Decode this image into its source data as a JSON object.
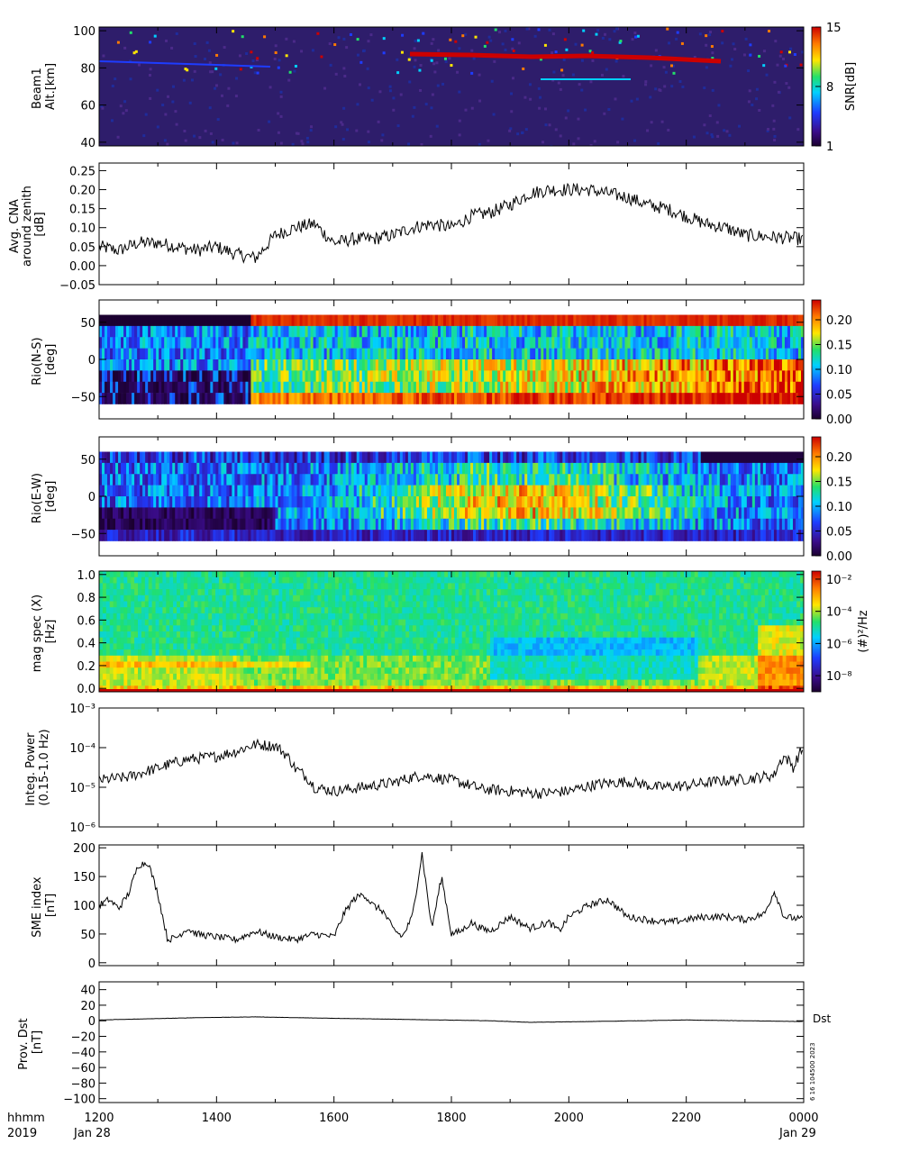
{
  "chart_data": [
    {
      "type": "heatmap",
      "ylabel": [
        "Beam1",
        "Alt.[km]"
      ],
      "y_ticks": [
        "40",
        "60",
        "80",
        "100"
      ],
      "ylim": [
        38,
        102
      ],
      "colorbar": {
        "label": "SNR[dB]",
        "ticks": [
          "1",
          "8",
          "15"
        ],
        "range": [
          1,
          15
        ]
      }
    },
    {
      "type": "line",
      "ylabel": [
        "Avg. CNA",
        "around zenith",
        "[dB]"
      ],
      "y_ticks": [
        "−0.05",
        "0.00",
        "0.05",
        "0.10",
        "0.15",
        "0.20",
        "0.25"
      ],
      "ylim": [
        -0.05,
        0.27
      ],
      "x": [
        0,
        20,
        40,
        60,
        80,
        100,
        120,
        140,
        160,
        180,
        200,
        220,
        240,
        260,
        280,
        300,
        320,
        340,
        360,
        380,
        400,
        420,
        440,
        460,
        480,
        500,
        520,
        540,
        560,
        580,
        600,
        620,
        640,
        660,
        720
      ],
      "values": [
        0.05,
        0.04,
        0.06,
        0.06,
        0.05,
        0.04,
        0.05,
        0.03,
        0.02,
        0.08,
        0.1,
        0.11,
        0.06,
        0.07,
        0.07,
        0.08,
        0.1,
        0.11,
        0.1,
        0.13,
        0.14,
        0.16,
        0.19,
        0.2,
        0.2,
        0.2,
        0.19,
        0.18,
        0.16,
        0.15,
        0.13,
        0.11,
        0.1,
        0.08,
        0.07
      ]
    },
    {
      "type": "heatmap",
      "ylabel": [
        "Rio(N-S)",
        "[deg]"
      ],
      "y_ticks": [
        "−50",
        "0",
        "50"
      ],
      "ylim": [
        -80,
        80
      ],
      "colorbar": {
        "ticks": [
          "0.00",
          "0.05",
          "0.10",
          "0.15",
          "0.20"
        ],
        "range": [
          0,
          0.24
        ]
      }
    },
    {
      "type": "heatmap",
      "ylabel": [
        "Rio(E-W)",
        "[deg]"
      ],
      "y_ticks": [
        "−50",
        "0",
        "50"
      ],
      "ylim": [
        -80,
        80
      ],
      "colorbar": {
        "ticks": [
          "0.00",
          "0.05",
          "0.10",
          "0.15",
          "0.20"
        ],
        "range": [
          0,
          0.24
        ]
      }
    },
    {
      "type": "heatmap",
      "ylabel": [
        "mag spec (X)",
        "[Hz]"
      ],
      "y_ticks": [
        "0.0",
        "0.2",
        "0.4",
        "0.6",
        "0.8",
        "1.0"
      ],
      "ylim": [
        -0.03,
        1.03
      ],
      "colorbar": {
        "label": "(#)²/Hz",
        "ticks": [
          "10⁻⁸",
          "10⁻⁶",
          "10⁻⁴",
          "10⁻²"
        ],
        "range": [
          -9,
          -1.5
        ]
      }
    },
    {
      "type": "line",
      "ylabel": [
        "Integ. Power",
        "(0.15-1.0 Hz)"
      ],
      "y_ticks": [
        "10⁻⁶",
        "10⁻⁵",
        "10⁻⁴",
        "10⁻³"
      ],
      "yscale": "log",
      "ylim": [
        -6,
        -3
      ],
      "x": [
        0,
        30,
        60,
        90,
        120,
        140,
        160,
        180,
        200,
        220,
        240,
        270,
        300,
        330,
        360,
        390,
        420,
        450,
        480,
        510,
        540,
        570,
        600,
        630,
        660,
        690,
        700,
        710,
        720
      ],
      "values": [
        1.5e-05,
        1.8e-05,
        3e-05,
        5e-05,
        6e-05,
        8e-05,
        0.00012,
        0.00011,
        3e-05,
        1e-05,
        8e-06,
        1e-05,
        1.3e-05,
        2e-05,
        1.5e-05,
        9e-06,
        8e-06,
        7e-06,
        8e-06,
        1.2e-05,
        1.4e-05,
        1e-05,
        1.1e-05,
        1.4e-05,
        1.6e-05,
        2e-05,
        6e-05,
        3e-05,
        0.0001
      ]
    },
    {
      "type": "line",
      "ylabel": [
        "SME index",
        "[nT]"
      ],
      "y_ticks": [
        "0",
        "50",
        "100",
        "150",
        "200"
      ],
      "ylim": [
        -5,
        205
      ],
      "x": [
        0,
        10,
        20,
        30,
        40,
        50,
        60,
        70,
        80,
        90,
        100,
        120,
        140,
        160,
        180,
        200,
        220,
        240,
        250,
        260,
        270,
        280,
        290,
        300,
        310,
        320,
        330,
        340,
        350,
        360,
        370,
        380,
        390,
        400,
        420,
        440,
        460,
        470,
        480,
        500,
        520,
        540,
        560,
        580,
        600,
        620,
        640,
        660,
        680,
        690,
        700,
        720
      ],
      "values": [
        100,
        110,
        95,
        120,
        170,
        175,
        120,
        40,
        45,
        60,
        50,
        45,
        40,
        55,
        45,
        40,
        50,
        45,
        85,
        110,
        120,
        100,
        90,
        60,
        45,
        80,
        190,
        60,
        150,
        50,
        55,
        70,
        60,
        55,
        80,
        60,
        70,
        55,
        80,
        100,
        110,
        80,
        75,
        70,
        75,
        80,
        80,
        75,
        85,
        125,
        80,
        75
      ]
    },
    {
      "type": "line",
      "ylabel": [
        "Prov. Dst",
        "[nT]"
      ],
      "y_ticks": [
        "−100",
        "−80",
        "−60",
        "−40",
        "−20",
        "0",
        "20",
        "40"
      ],
      "ylim": [
        -105,
        50
      ],
      "x": [
        0,
        100,
        160,
        200,
        300,
        400,
        440,
        500,
        600,
        660,
        720
      ],
      "values": [
        1,
        4,
        5,
        4,
        2,
        0,
        -2,
        -1,
        1,
        0,
        -1
      ],
      "annotation": "Dst"
    }
  ],
  "time_axis": {
    "x_ticks": [
      "1200",
      "1400",
      "1600",
      "1800",
      "2000",
      "2200",
      "0000"
    ],
    "row1_label": "hhmm",
    "row2_left": "2019",
    "date_start": "Jan 28",
    "date_end": "Jan 29"
  },
  "stamp": "6 16 104500 2023"
}
